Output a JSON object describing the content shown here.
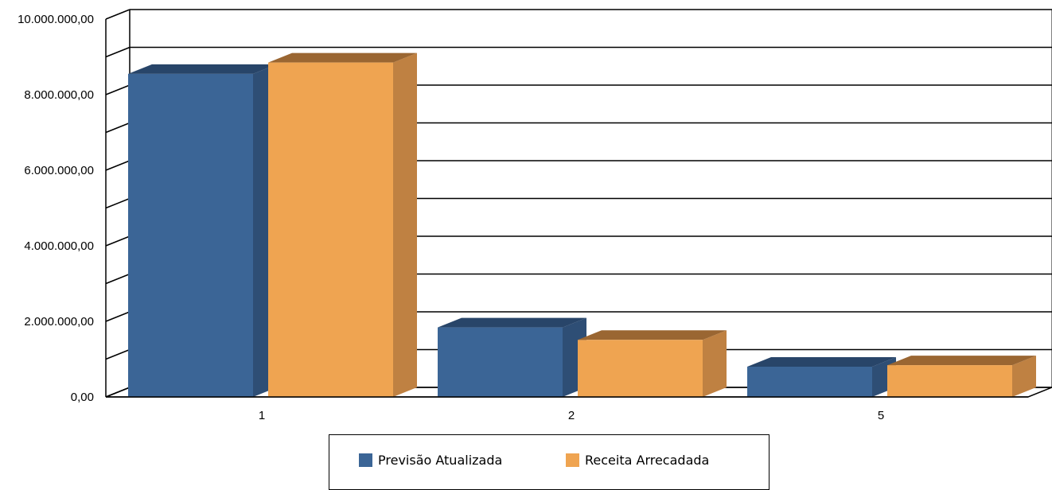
{
  "chart_data": {
    "type": "bar",
    "title": "",
    "categories": [
      "1",
      "2",
      "5"
    ],
    "series": [
      {
        "name": "Previsão Atualizada",
        "values": [
          8550000,
          1840000,
          800000
        ],
        "color": "#3B6596",
        "side_color": "#2E4E75",
        "top_color": "#284569"
      },
      {
        "name": "Receita Arrecadada",
        "values": [
          8850000,
          1510000,
          840000
        ],
        "color": "#EFA451",
        "side_color": "#BF8142",
        "top_color": "#9A6632"
      }
    ],
    "y_ticks": [
      "0,00",
      "2.000.000,00",
      "4.000.000,00",
      "6.000.000,00",
      "8.000.000,00",
      "10.000.000,00"
    ],
    "ylim": [
      0,
      10000000
    ],
    "grid": true,
    "legend_position": "bottom"
  }
}
